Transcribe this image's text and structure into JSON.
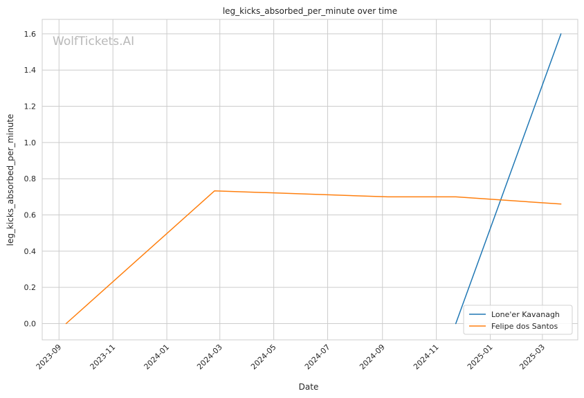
{
  "chart_data": {
    "type": "line",
    "title": "leg_kicks_absorbed_per_minute over time",
    "xlabel": "Date",
    "ylabel": "leg_kicks_absorbed_per_minute",
    "watermark": "WolfTickets.AI",
    "x_ticks": [
      "2023-09",
      "2023-11",
      "2024-01",
      "2024-03",
      "2024-05",
      "2024-07",
      "2024-09",
      "2024-11",
      "2025-01",
      "2025-03"
    ],
    "y_ticks": [
      "0.0",
      "0.2",
      "0.4",
      "0.6",
      "0.8",
      "1.0",
      "1.2",
      "1.4",
      "1.6"
    ],
    "ylim": [
      -0.09,
      1.68
    ],
    "xlim": [
      "2023-08-13",
      "2025-04-10"
    ],
    "grid": true,
    "legend_position": "lower-right",
    "series": [
      {
        "name": "Lone'er Kavanagh",
        "color": "#1f77b4",
        "x": [
          "2024-11-23",
          "2025-03-22"
        ],
        "y": [
          0.0,
          1.6
        ]
      },
      {
        "name": "Felipe dos Santos",
        "color": "#ff7f0e",
        "x": [
          "2023-09-09",
          "2024-02-24",
          "2024-09-07",
          "2024-11-23",
          "2025-03-22"
        ],
        "y": [
          0.0,
          0.733,
          0.7,
          0.7,
          0.66
        ]
      }
    ]
  }
}
